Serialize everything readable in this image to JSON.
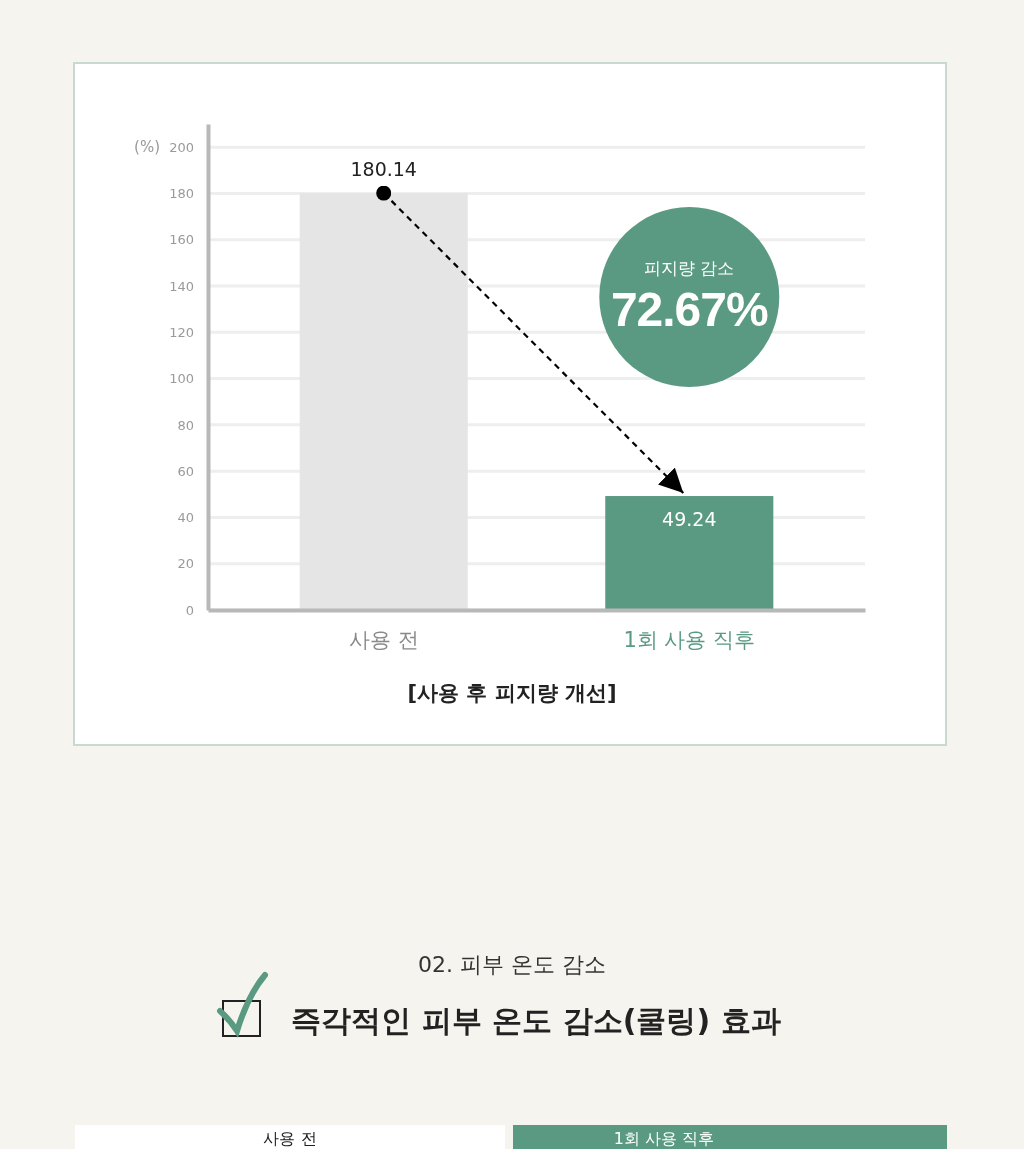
{
  "chart_data": {
    "type": "bar",
    "title": "[사용 후 피지량 개선]",
    "ylabel": "(%)",
    "categories": [
      "사용 전",
      "1회 사용 직후"
    ],
    "values": [
      180.14,
      49.24
    ],
    "colors": [
      "#e5e5e5",
      "#5b9a82"
    ],
    "ylim": [
      0,
      210
    ],
    "yticks": [
      0,
      20,
      40,
      60,
      80,
      100,
      120,
      140,
      160,
      180,
      200
    ],
    "grid": "y",
    "data_labels": true,
    "annotations": [
      "피지량 감소",
      "72.67%",
      "02. 피부 온도 감소",
      "즉각적인 피부 온도 감소(쿨링) 효과",
      "사용 전",
      "1회 사용 직후"
    ]
  }
}
